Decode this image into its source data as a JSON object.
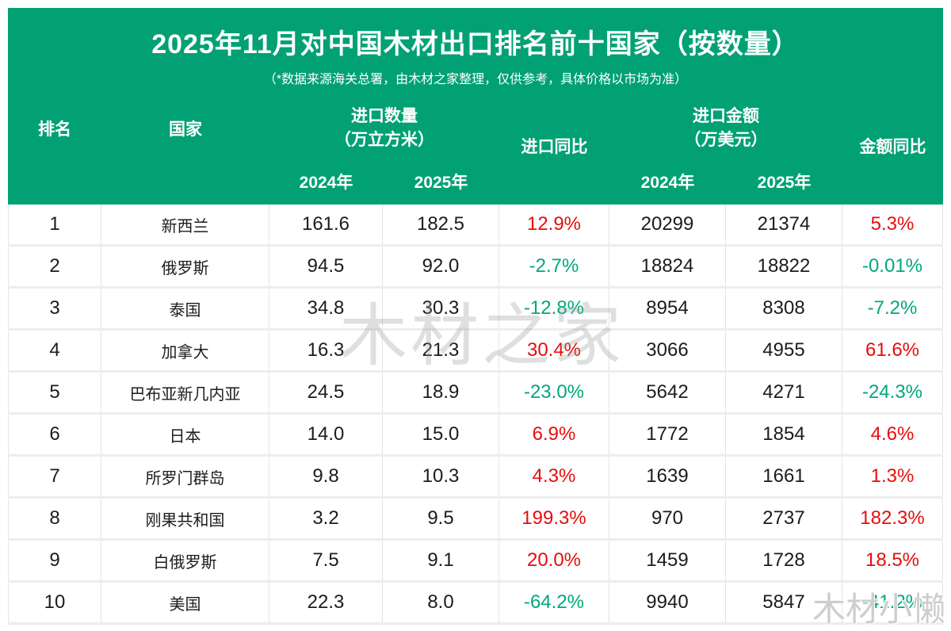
{
  "header": {
    "title": "2025年11月对中国木材出口排名前十国家（按数量）",
    "subtitle": "（*数据来源海关总署，由木材之家整理，仅供参考，具体价格以市场为准）"
  },
  "table": {
    "headers": {
      "rank": "排名",
      "country": "国家",
      "quantity_group_line1": "进口数量",
      "quantity_group_line2": "（万立方米）",
      "import_yoy": "进口同比",
      "amount_group_line1": "进口金额",
      "amount_group_line2": "（万美元）",
      "amount_yoy": "金额同比",
      "quantity_year_2024": "2024年",
      "quantity_year_2025": "2025年",
      "amount_year_2024": "2024年",
      "amount_year_2025": "2025年"
    },
    "rows": [
      {
        "rank": "1",
        "country": "新西兰",
        "qty_2024": "161.6",
        "qty_2025": "182.5",
        "qty_yoy": "12.9%",
        "qty_trend": "up",
        "amt_2024": "20299",
        "amt_2025": "21374",
        "amt_yoy": "5.3%",
        "amt_trend": "up"
      },
      {
        "rank": "2",
        "country": "俄罗斯",
        "qty_2024": "94.5",
        "qty_2025": "92.0",
        "qty_yoy": "-2.7%",
        "qty_trend": "down",
        "amt_2024": "18824",
        "amt_2025": "18822",
        "amt_yoy": "-0.01%",
        "amt_trend": "down"
      },
      {
        "rank": "3",
        "country": "泰国",
        "qty_2024": "34.8",
        "qty_2025": "30.3",
        "qty_yoy": "-12.8%",
        "qty_trend": "down",
        "amt_2024": "8954",
        "amt_2025": "8308",
        "amt_yoy": "-7.2%",
        "amt_trend": "down"
      },
      {
        "rank": "4",
        "country": "加拿大",
        "qty_2024": "16.3",
        "qty_2025": "21.3",
        "qty_yoy": "30.4%",
        "qty_trend": "up",
        "amt_2024": "3066",
        "amt_2025": "4955",
        "amt_yoy": "61.6%",
        "amt_trend": "up"
      },
      {
        "rank": "5",
        "country": "巴布亚新几内亚",
        "qty_2024": "24.5",
        "qty_2025": "18.9",
        "qty_yoy": "-23.0%",
        "qty_trend": "down",
        "amt_2024": "5642",
        "amt_2025": "4271",
        "amt_yoy": "-24.3%",
        "amt_trend": "down"
      },
      {
        "rank": "6",
        "country": "日本",
        "qty_2024": "14.0",
        "qty_2025": "15.0",
        "qty_yoy": "6.9%",
        "qty_trend": "up",
        "amt_2024": "1772",
        "amt_2025": "1854",
        "amt_yoy": "4.6%",
        "amt_trend": "up"
      },
      {
        "rank": "7",
        "country": "所罗门群岛",
        "qty_2024": "9.8",
        "qty_2025": "10.3",
        "qty_yoy": "4.3%",
        "qty_trend": "up",
        "amt_2024": "1639",
        "amt_2025": "1661",
        "amt_yoy": "1.3%",
        "amt_trend": "up"
      },
      {
        "rank": "8",
        "country": "刚果共和国",
        "qty_2024": "3.2",
        "qty_2025": "9.5",
        "qty_yoy": "199.3%",
        "qty_trend": "up",
        "amt_2024": "970",
        "amt_2025": "2737",
        "amt_yoy": "182.3%",
        "amt_trend": "up"
      },
      {
        "rank": "9",
        "country": "白俄罗斯",
        "qty_2024": "7.5",
        "qty_2025": "9.1",
        "qty_yoy": "20.0%",
        "qty_trend": "up",
        "amt_2024": "1459",
        "amt_2025": "1728",
        "amt_yoy": "18.5%",
        "amt_trend": "up"
      },
      {
        "rank": "10",
        "country": "美国",
        "qty_2024": "22.3",
        "qty_2025": "8.0",
        "qty_yoy": "-64.2%",
        "qty_trend": "down",
        "amt_2024": "9940",
        "amt_2025": "5847",
        "amt_yoy": "-41.2%",
        "amt_trend": "down"
      }
    ]
  },
  "watermarks": {
    "center": "木材之家",
    "corner": "木材小懒"
  },
  "colors": {
    "header_green": "#02a173",
    "increase_red": "#e60d0d",
    "decrease_green": "#00a87a"
  }
}
